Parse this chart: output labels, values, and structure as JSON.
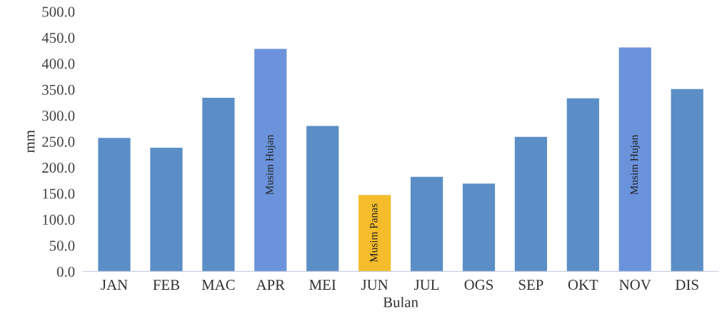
{
  "chart_data": {
    "type": "bar",
    "xlabel": "Bulan",
    "ylabel": "mm",
    "categories": [
      "JAN",
      "FEB",
      "MAC",
      "APR",
      "MEI",
      "JUN",
      "JUL",
      "OGS",
      "SEP",
      "OKT",
      "NOV",
      "DIS"
    ],
    "values": [
      257,
      238,
      334,
      428,
      280,
      147,
      182,
      169,
      259,
      333,
      431,
      351
    ],
    "colors": [
      "#5b8ec6",
      "#5b8ec6",
      "#5b8ec6",
      "#6b93dc",
      "#5b8ec6",
      "#f5bd2c",
      "#5b8ec6",
      "#5b8ec6",
      "#5b8ec6",
      "#5b8ec6",
      "#6b93dc",
      "#5b8ec6"
    ],
    "ylim": [
      0,
      500
    ],
    "yticks": [
      {
        "value": 0,
        "label": "0.0"
      },
      {
        "value": 50,
        "label": "50.0"
      },
      {
        "value": 100,
        "label": "100.0"
      },
      {
        "value": 150,
        "label": "150.0"
      },
      {
        "value": 200,
        "label": "200.0"
      },
      {
        "value": 250,
        "label": "250.0"
      },
      {
        "value": 300,
        "label": "300.0"
      },
      {
        "value": 350,
        "label": "350.0"
      },
      {
        "value": 400,
        "label": "400.0"
      },
      {
        "value": 450,
        "label": "450.0"
      },
      {
        "value": 500,
        "label": "500.0"
      }
    ],
    "annotations": [
      "Musim Hujan",
      "Musim Panas",
      "Musim Hujan"
    ],
    "grid": false,
    "legend": false
  }
}
